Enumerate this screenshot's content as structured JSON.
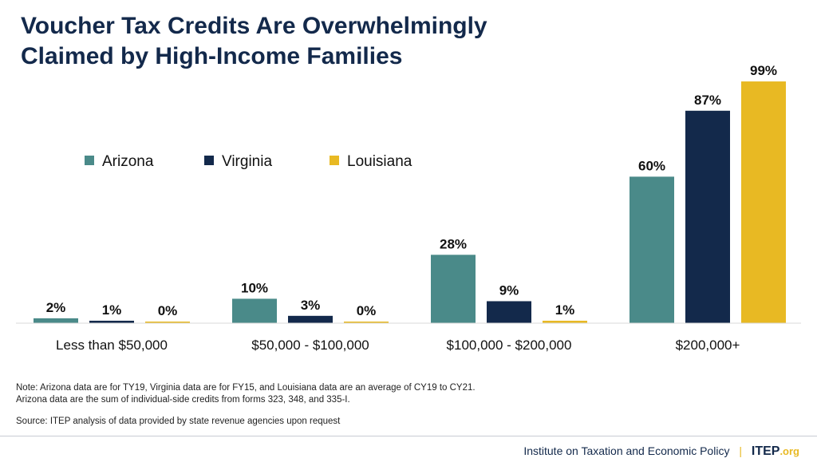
{
  "title": {
    "line1": "Voucher Tax Credits Are Overwhelmingly",
    "line2": "Claimed by High-Income Families"
  },
  "chart_data": {
    "type": "bar",
    "title": "Voucher Tax Credits Are Overwhelmingly Claimed by High-Income Families",
    "categories": [
      "Less than $50,000",
      "$50,000 - $100,000",
      "$100,000 - $200,000",
      "$200,000+"
    ],
    "series": [
      {
        "name": "Arizona",
        "color": "#4a8a89",
        "values": [
          2,
          10,
          28,
          60
        ],
        "labels": [
          "2%",
          "10%",
          "28%",
          "60%"
        ]
      },
      {
        "name": "Virginia",
        "color": "#13294b",
        "values": [
          1,
          3,
          9,
          87
        ],
        "labels": [
          "1%",
          "3%",
          "9%",
          "87%"
        ]
      },
      {
        "name": "Louisiana",
        "color": "#e8b923",
        "values": [
          0,
          0,
          1,
          99
        ],
        "labels": [
          "0%",
          "0%",
          "1%",
          "99%"
        ]
      }
    ],
    "ylim": [
      0,
      100
    ],
    "xlabel": "",
    "ylabel": "",
    "grid": false,
    "legend": "top-left"
  },
  "notes": {
    "line1": "Note: Arizona data are for TY19, Virginia data are for FY15, and Louisiana data are an average of CY19 to CY21.",
    "line2": "Arizona data are the sum of individual-side credits from forms 323, 348, and 335-I.",
    "source": "Source: ITEP analysis of data provided by state revenue agencies upon request"
  },
  "footer": {
    "org_name": "Institute on Taxation and Economic Policy",
    "separator": "|",
    "brand": "ITEP",
    "brand_suffix": ".org"
  }
}
